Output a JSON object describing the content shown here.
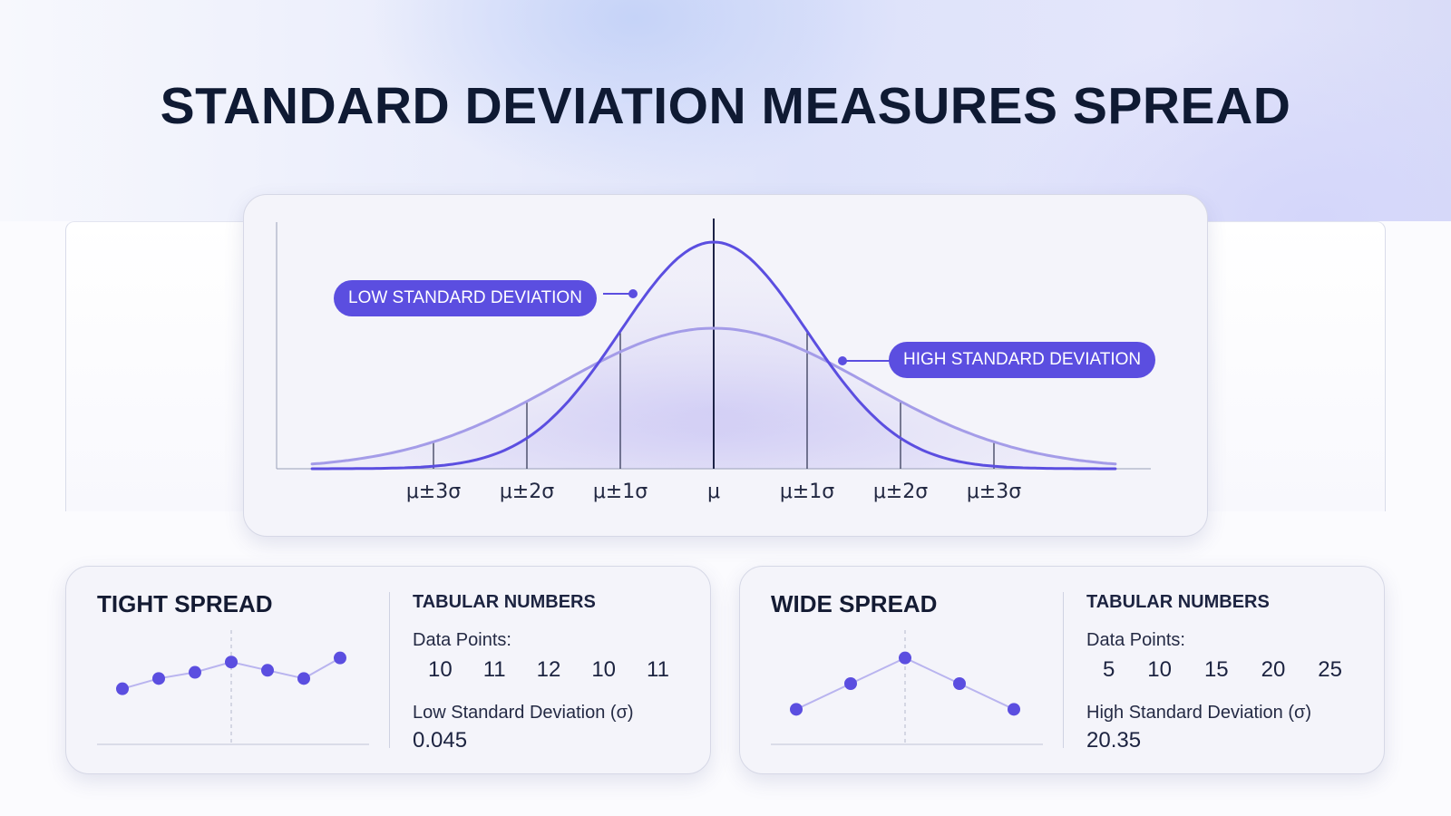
{
  "title": "STANDARD DEVIATION MEASURES SPREAD",
  "colors": {
    "accent": "#5b4ee0",
    "low_sd_curve": "#5b4ee0",
    "high_sd_curve": "#a49ce8",
    "point": "#5b4ee0"
  },
  "chart_data": [
    {
      "type": "line",
      "title": "",
      "xlabel": "",
      "ylabel": "",
      "x_ticks": [
        "μ±3σ",
        "μ±2σ",
        "μ±1σ",
        "μ",
        "μ±1σ",
        "μ±2σ",
        "μ±3σ"
      ],
      "x_tick_values": [
        -3,
        -2,
        -1,
        0,
        1,
        2,
        3
      ],
      "xlim": [
        -4.3,
        4.3
      ],
      "ylim": [
        0,
        1
      ],
      "grid": false,
      "series": [
        {
          "name": "LOW STANDARD DEVIATION",
          "distribution": "normal",
          "mean": 0,
          "sd": 1,
          "peak": 1.0,
          "x": [
            -4,
            -3,
            -2,
            -1,
            0,
            1,
            2,
            3,
            4
          ],
          "values": [
            0.0,
            0.01,
            0.08,
            0.52,
            1.0,
            0.52,
            0.08,
            0.01,
            0.0
          ]
        },
        {
          "name": "HIGH STANDARD DEVIATION",
          "distribution": "normal",
          "mean": 0,
          "sd": 1.65,
          "peak": 0.62,
          "x": [
            -4,
            -3,
            -2,
            -1,
            0,
            1,
            2,
            3,
            4
          ],
          "values": [
            0.03,
            0.12,
            0.29,
            0.52,
            0.62,
            0.52,
            0.29,
            0.12,
            0.03
          ]
        }
      ],
      "callouts": {
        "low": "LOW STANDARD DEVIATION",
        "high": "HIGH STANDARD DEVIATION"
      }
    },
    {
      "type": "line",
      "title": "TIGHT SPREAD",
      "values": [
        10,
        10.5,
        10.8,
        11.3,
        10.9,
        10.5,
        11.5
      ],
      "mid_marker_index": 3,
      "ylim": [
        8,
        12.5
      ]
    },
    {
      "type": "line",
      "title": "WIDE SPREAD",
      "values": [
        10,
        15,
        20,
        15,
        10
      ],
      "mid_marker_index": 2,
      "ylim": [
        6,
        24
      ]
    }
  ],
  "tight_card": {
    "title": "TIGHT SPREAD",
    "subtitle": "TABULAR NUMBERS",
    "data_points_label": "Data Points:",
    "data_points": [
      "10",
      "11",
      "12",
      "10",
      "11"
    ],
    "sd_label": "Low Standard Deviation (σ)",
    "sd_value": "0.045"
  },
  "wide_card": {
    "title": "WIDE SPREAD",
    "subtitle": "TABULAR NUMBERS",
    "data_points_label": "Data Points:",
    "data_points": [
      "5",
      "10",
      "15",
      "20",
      "25"
    ],
    "sd_label": "High Standard Deviation (σ)",
    "sd_value": "20.35"
  }
}
